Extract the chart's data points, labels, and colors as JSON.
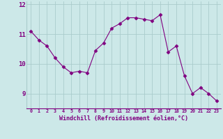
{
  "x": [
    0,
    1,
    2,
    3,
    4,
    5,
    6,
    7,
    8,
    9,
    10,
    11,
    12,
    13,
    14,
    15,
    16,
    17,
    18,
    19,
    20,
    21,
    22,
    23
  ],
  "y": [
    11.1,
    10.8,
    10.6,
    10.2,
    9.9,
    9.7,
    9.75,
    9.7,
    10.45,
    10.7,
    11.2,
    11.35,
    11.55,
    11.55,
    11.5,
    11.45,
    11.65,
    10.4,
    10.6,
    9.6,
    9.0,
    9.2,
    9.0,
    8.75
  ],
  "line_color": "#800080",
  "marker": "D",
  "marker_size": 2.5,
  "bg_color": "#cce8e8",
  "grid_color": "#aacccc",
  "xlabel": "Windchill (Refroidissement éolien,°C)",
  "xlabel_color": "#800080",
  "tick_color": "#800080",
  "ylim": [
    8.5,
    12.1
  ],
  "xlim": [
    -0.5,
    23.5
  ],
  "yticks": [
    9,
    10,
    11,
    12
  ],
  "xticks": [
    0,
    1,
    2,
    3,
    4,
    5,
    6,
    7,
    8,
    9,
    10,
    11,
    12,
    13,
    14,
    15,
    16,
    17,
    18,
    19,
    20,
    21,
    22,
    23
  ],
  "spine_color": "#800080"
}
